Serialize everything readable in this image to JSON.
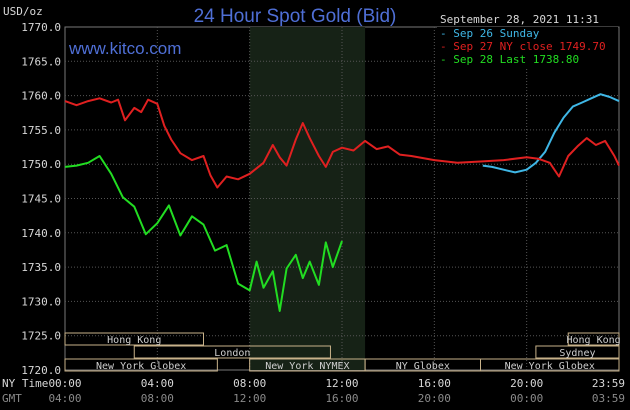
{
  "chart_data": {
    "type": "line",
    "title": "24 Hour Spot Gold (Bid)",
    "website": "www.kitco.com",
    "y_unit": "USD/oz",
    "timestamp": "September 28, 2021 11:31",
    "ylim": [
      1720,
      1770
    ],
    "y_ticks": [
      "1770.0",
      "1765.0",
      "1760.0",
      "1755.0",
      "1750.0",
      "1745.0",
      "1740.0",
      "1735.0",
      "1730.0",
      "1725.0",
      "1720.0"
    ],
    "x_tick_label_top": "NY Time",
    "x_tick_label_bottom": "GMT",
    "x_ticks_ny": [
      "00:00",
      "04:00",
      "08:00",
      "12:00",
      "16:00",
      "20:00",
      "23:59"
    ],
    "x_ticks_gmt": [
      "04:00",
      "08:00",
      "12:00",
      "16:00",
      "20:00",
      "00:00",
      "03:59"
    ],
    "xlim_hours": [
      0,
      24
    ],
    "highlight_band_hours": [
      8,
      13
    ],
    "colors": {
      "blue": "#3fb7e6",
      "red": "#e02020",
      "green": "#22dd22",
      "title": "#4f6fd6",
      "grid": "#555555"
    },
    "legend": [
      {
        "text": "Sep 26 Sunday",
        "color": "#3fb7e6"
      },
      {
        "text": "Sep 27 NY close 1749.70",
        "color": "#e02020"
      },
      {
        "text": "Sep 28 Last 1738.80",
        "color": "#22dd22"
      }
    ],
    "series": [
      {
        "color": "#3fb7e6",
        "x": [
          18.1,
          18.5,
          19,
          19.5,
          20,
          20.4,
          20.8,
          21.2,
          21.6,
          22,
          22.4,
          22.8,
          23.2,
          23.6,
          24
        ],
        "y": [
          1749.8,
          1749.6,
          1749.2,
          1748.8,
          1749.2,
          1750.2,
          1751.8,
          1754.6,
          1756.8,
          1758.4,
          1759.0,
          1759.6,
          1760.2,
          1759.8,
          1759.2
        ]
      },
      {
        "color": "#e02020",
        "x": [
          0,
          0.5,
          1,
          1.5,
          2,
          2.3,
          2.6,
          3,
          3.3,
          3.6,
          4,
          4.3,
          4.6,
          5,
          5.5,
          6,
          6.3,
          6.6,
          7,
          7.5,
          8,
          8.3,
          8.6,
          9,
          9.3,
          9.6,
          10,
          10.3,
          10.6,
          11,
          11.3,
          11.6,
          12,
          12.5,
          13,
          13.5,
          14,
          14.5,
          15,
          16,
          17,
          18,
          19,
          20,
          20.5,
          21,
          21.4,
          21.8,
          22.2,
          22.6,
          23,
          23.4,
          23.8,
          24
        ],
        "y": [
          1759.2,
          1758.6,
          1759.2,
          1759.6,
          1759.0,
          1759.4,
          1756.4,
          1758.2,
          1757.6,
          1759.4,
          1758.8,
          1755.6,
          1753.6,
          1751.6,
          1750.6,
          1751.2,
          1748.4,
          1746.6,
          1748.2,
          1747.8,
          1748.6,
          1749.4,
          1750.2,
          1752.8,
          1751.0,
          1749.8,
          1753.6,
          1756.0,
          1753.8,
          1751.2,
          1749.6,
          1751.8,
          1752.4,
          1752.0,
          1753.4,
          1752.2,
          1752.6,
          1751.4,
          1751.2,
          1750.6,
          1750.2,
          1750.4,
          1750.6,
          1751.0,
          1750.8,
          1750.2,
          1748.2,
          1751.2,
          1752.6,
          1753.8,
          1752.8,
          1753.4,
          1751.2,
          1749.8
        ]
      },
      {
        "color": "#22dd22",
        "x": [
          0,
          0.5,
          1,
          1.5,
          2,
          2.5,
          3,
          3.5,
          4,
          4.5,
          5,
          5.5,
          6,
          6.5,
          7,
          7.5,
          8,
          8.3,
          8.6,
          9,
          9.3,
          9.6,
          10,
          10.3,
          10.6,
          11,
          11.3,
          11.6,
          12
        ],
        "y": [
          1749.6,
          1749.8,
          1750.2,
          1751.2,
          1748.6,
          1745.2,
          1743.8,
          1739.8,
          1741.4,
          1744.0,
          1739.6,
          1742.4,
          1741.2,
          1737.4,
          1738.2,
          1732.6,
          1731.6,
          1735.8,
          1732.0,
          1734.4,
          1728.6,
          1734.8,
          1736.8,
          1733.4,
          1735.8,
          1732.4,
          1738.6,
          1735.0,
          1738.8
        ]
      }
    ],
    "sessions": [
      {
        "label": "Hong Kong",
        "start": 0,
        "end": 6,
        "row": 0
      },
      {
        "label": "Hong Kong",
        "start": 21.8,
        "end": 24,
        "row": 0
      },
      {
        "label": "London",
        "start": 3,
        "end": 11.5,
        "row": 1
      },
      {
        "label": "Sydney",
        "start": 20.4,
        "end": 24,
        "row": 1
      },
      {
        "label": "New York Globex",
        "start": 0,
        "end": 6.6,
        "row": 2
      },
      {
        "label": "New York NYMEX",
        "start": 8,
        "end": 13,
        "row": 2
      },
      {
        "label": "NY Globex",
        "start": 13,
        "end": 18,
        "row": 2
      },
      {
        "label": "New York Globex",
        "start": 18,
        "end": 24,
        "row": 2
      }
    ]
  }
}
